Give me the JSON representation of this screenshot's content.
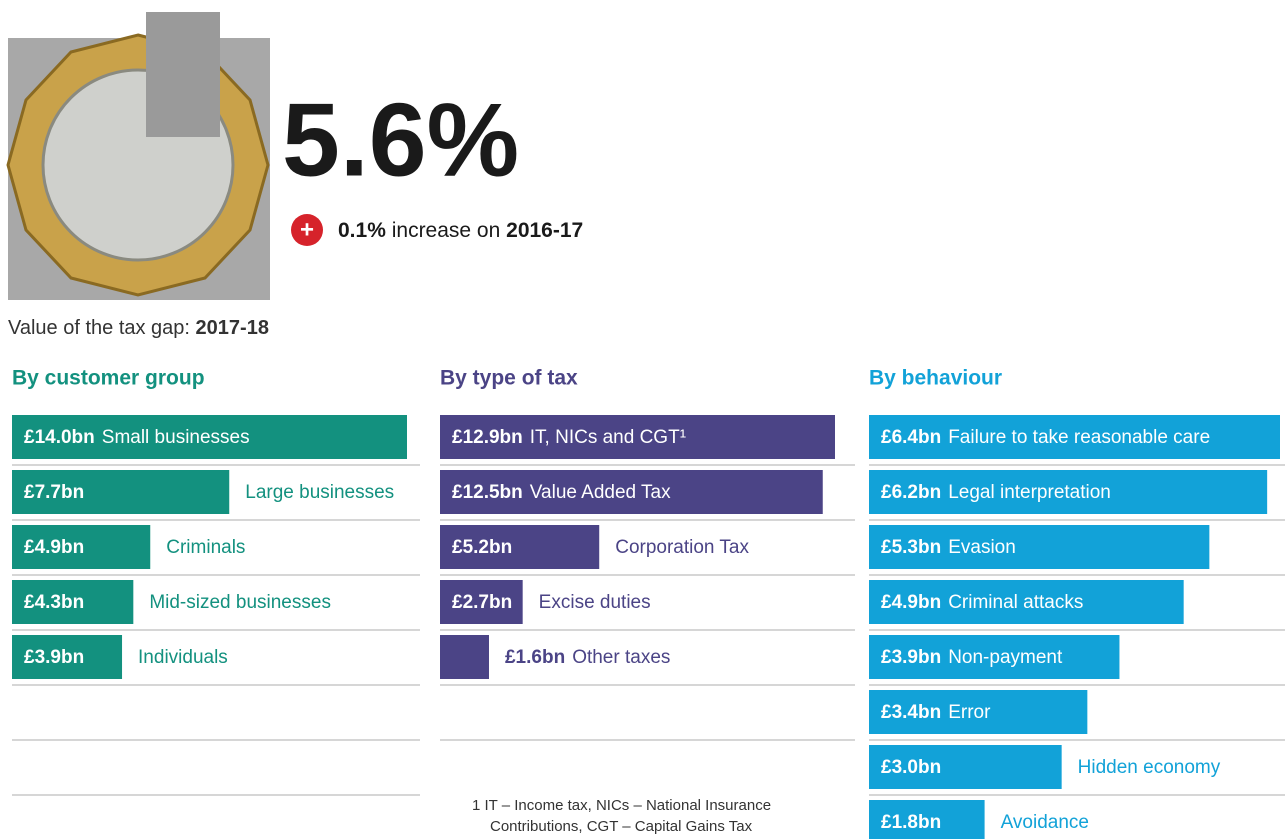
{
  "header": {
    "headline": "5.6%",
    "change_value": "0.1%",
    "change_text": "increase on",
    "change_period": "2016-17",
    "subtitle": "Value of the tax gap:",
    "subtitle_period": "2017-18"
  },
  "footnote": [
    "1  IT – Income tax, NICs – National Insurance",
    "Contributions, CGT – Capital Gains Tax"
  ],
  "chart_data": [
    {
      "type": "bar",
      "orientation": "horizontal",
      "title": "By customer group",
      "color": "#13917f",
      "categories": [
        "Small businesses",
        "Large businesses",
        "Criminals",
        "Mid-sized businesses",
        "Individuals"
      ],
      "values": [
        14.0,
        7.7,
        4.9,
        4.3,
        3.9
      ],
      "value_labels": [
        "£14.0bn",
        "£7.7bn",
        "£4.9bn",
        "£4.3bn",
        "£3.9bn"
      ]
    },
    {
      "type": "bar",
      "orientation": "horizontal",
      "title": "By type of tax",
      "color": "#4b4486",
      "categories": [
        "IT, NICs and CGT¹",
        "Value Added Tax",
        "Corporation Tax",
        "Excise duties",
        "Other taxes"
      ],
      "values": [
        12.9,
        12.5,
        5.2,
        2.7,
        1.6
      ],
      "value_labels": [
        "£12.9bn",
        "£12.5bn",
        "£5.2bn",
        "£2.7bn",
        "£1.6bn"
      ]
    },
    {
      "type": "bar",
      "orientation": "horizontal",
      "title": "By behaviour",
      "color": "#12a2d8",
      "categories": [
        "Failure to take reasonable care",
        "Legal interpretation",
        "Evasion",
        "Criminal attacks",
        "Non-payment",
        "Error",
        "Hidden economy",
        "Avoidance"
      ],
      "values": [
        6.4,
        6.2,
        5.3,
        4.9,
        3.9,
        3.4,
        3.0,
        1.8
      ],
      "value_labels": [
        "£6.4bn",
        "£6.2bn",
        "£5.3bn",
        "£4.9bn",
        "£3.9bn",
        "£3.4bn",
        "£3.0bn",
        "£1.8bn"
      ]
    }
  ]
}
